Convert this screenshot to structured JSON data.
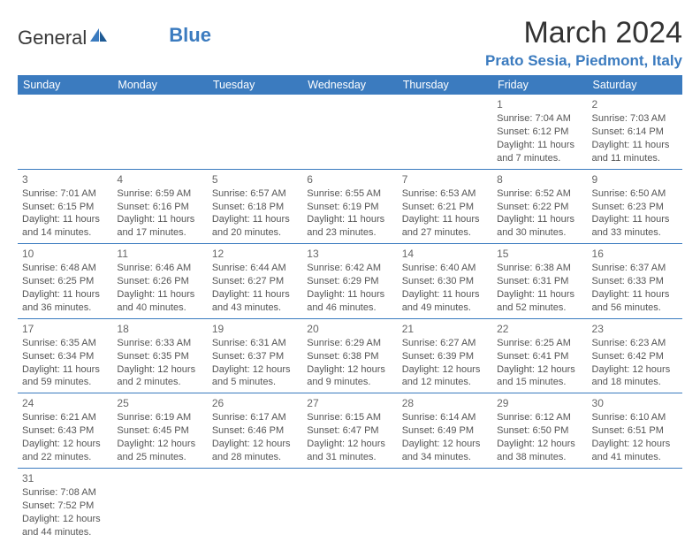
{
  "logo": {
    "general": "General",
    "blue": "Blue"
  },
  "title": "March 2024",
  "location": "Prato Sesia, Piedmont, Italy",
  "colors": {
    "accent": "#3b7bbf",
    "text": "#333333",
    "cell_text": "#555555"
  },
  "dayHeaders": [
    "Sunday",
    "Monday",
    "Tuesday",
    "Wednesday",
    "Thursday",
    "Friday",
    "Saturday"
  ],
  "weeks": [
    [
      null,
      null,
      null,
      null,
      null,
      {
        "n": "1",
        "sr": "Sunrise: 7:04 AM",
        "ss": "Sunset: 6:12 PM",
        "d1": "Daylight: 11 hours",
        "d2": "and 7 minutes."
      },
      {
        "n": "2",
        "sr": "Sunrise: 7:03 AM",
        "ss": "Sunset: 6:14 PM",
        "d1": "Daylight: 11 hours",
        "d2": "and 11 minutes."
      }
    ],
    [
      {
        "n": "3",
        "sr": "Sunrise: 7:01 AM",
        "ss": "Sunset: 6:15 PM",
        "d1": "Daylight: 11 hours",
        "d2": "and 14 minutes."
      },
      {
        "n": "4",
        "sr": "Sunrise: 6:59 AM",
        "ss": "Sunset: 6:16 PM",
        "d1": "Daylight: 11 hours",
        "d2": "and 17 minutes."
      },
      {
        "n": "5",
        "sr": "Sunrise: 6:57 AM",
        "ss": "Sunset: 6:18 PM",
        "d1": "Daylight: 11 hours",
        "d2": "and 20 minutes."
      },
      {
        "n": "6",
        "sr": "Sunrise: 6:55 AM",
        "ss": "Sunset: 6:19 PM",
        "d1": "Daylight: 11 hours",
        "d2": "and 23 minutes."
      },
      {
        "n": "7",
        "sr": "Sunrise: 6:53 AM",
        "ss": "Sunset: 6:21 PM",
        "d1": "Daylight: 11 hours",
        "d2": "and 27 minutes."
      },
      {
        "n": "8",
        "sr": "Sunrise: 6:52 AM",
        "ss": "Sunset: 6:22 PM",
        "d1": "Daylight: 11 hours",
        "d2": "and 30 minutes."
      },
      {
        "n": "9",
        "sr": "Sunrise: 6:50 AM",
        "ss": "Sunset: 6:23 PM",
        "d1": "Daylight: 11 hours",
        "d2": "and 33 minutes."
      }
    ],
    [
      {
        "n": "10",
        "sr": "Sunrise: 6:48 AM",
        "ss": "Sunset: 6:25 PM",
        "d1": "Daylight: 11 hours",
        "d2": "and 36 minutes."
      },
      {
        "n": "11",
        "sr": "Sunrise: 6:46 AM",
        "ss": "Sunset: 6:26 PM",
        "d1": "Daylight: 11 hours",
        "d2": "and 40 minutes."
      },
      {
        "n": "12",
        "sr": "Sunrise: 6:44 AM",
        "ss": "Sunset: 6:27 PM",
        "d1": "Daylight: 11 hours",
        "d2": "and 43 minutes."
      },
      {
        "n": "13",
        "sr": "Sunrise: 6:42 AM",
        "ss": "Sunset: 6:29 PM",
        "d1": "Daylight: 11 hours",
        "d2": "and 46 minutes."
      },
      {
        "n": "14",
        "sr": "Sunrise: 6:40 AM",
        "ss": "Sunset: 6:30 PM",
        "d1": "Daylight: 11 hours",
        "d2": "and 49 minutes."
      },
      {
        "n": "15",
        "sr": "Sunrise: 6:38 AM",
        "ss": "Sunset: 6:31 PM",
        "d1": "Daylight: 11 hours",
        "d2": "and 52 minutes."
      },
      {
        "n": "16",
        "sr": "Sunrise: 6:37 AM",
        "ss": "Sunset: 6:33 PM",
        "d1": "Daylight: 11 hours",
        "d2": "and 56 minutes."
      }
    ],
    [
      {
        "n": "17",
        "sr": "Sunrise: 6:35 AM",
        "ss": "Sunset: 6:34 PM",
        "d1": "Daylight: 11 hours",
        "d2": "and 59 minutes."
      },
      {
        "n": "18",
        "sr": "Sunrise: 6:33 AM",
        "ss": "Sunset: 6:35 PM",
        "d1": "Daylight: 12 hours",
        "d2": "and 2 minutes."
      },
      {
        "n": "19",
        "sr": "Sunrise: 6:31 AM",
        "ss": "Sunset: 6:37 PM",
        "d1": "Daylight: 12 hours",
        "d2": "and 5 minutes."
      },
      {
        "n": "20",
        "sr": "Sunrise: 6:29 AM",
        "ss": "Sunset: 6:38 PM",
        "d1": "Daylight: 12 hours",
        "d2": "and 9 minutes."
      },
      {
        "n": "21",
        "sr": "Sunrise: 6:27 AM",
        "ss": "Sunset: 6:39 PM",
        "d1": "Daylight: 12 hours",
        "d2": "and 12 minutes."
      },
      {
        "n": "22",
        "sr": "Sunrise: 6:25 AM",
        "ss": "Sunset: 6:41 PM",
        "d1": "Daylight: 12 hours",
        "d2": "and 15 minutes."
      },
      {
        "n": "23",
        "sr": "Sunrise: 6:23 AM",
        "ss": "Sunset: 6:42 PM",
        "d1": "Daylight: 12 hours",
        "d2": "and 18 minutes."
      }
    ],
    [
      {
        "n": "24",
        "sr": "Sunrise: 6:21 AM",
        "ss": "Sunset: 6:43 PM",
        "d1": "Daylight: 12 hours",
        "d2": "and 22 minutes."
      },
      {
        "n": "25",
        "sr": "Sunrise: 6:19 AM",
        "ss": "Sunset: 6:45 PM",
        "d1": "Daylight: 12 hours",
        "d2": "and 25 minutes."
      },
      {
        "n": "26",
        "sr": "Sunrise: 6:17 AM",
        "ss": "Sunset: 6:46 PM",
        "d1": "Daylight: 12 hours",
        "d2": "and 28 minutes."
      },
      {
        "n": "27",
        "sr": "Sunrise: 6:15 AM",
        "ss": "Sunset: 6:47 PM",
        "d1": "Daylight: 12 hours",
        "d2": "and 31 minutes."
      },
      {
        "n": "28",
        "sr": "Sunrise: 6:14 AM",
        "ss": "Sunset: 6:49 PM",
        "d1": "Daylight: 12 hours",
        "d2": "and 34 minutes."
      },
      {
        "n": "29",
        "sr": "Sunrise: 6:12 AM",
        "ss": "Sunset: 6:50 PM",
        "d1": "Daylight: 12 hours",
        "d2": "and 38 minutes."
      },
      {
        "n": "30",
        "sr": "Sunrise: 6:10 AM",
        "ss": "Sunset: 6:51 PM",
        "d1": "Daylight: 12 hours",
        "d2": "and 41 minutes."
      }
    ],
    [
      {
        "n": "31",
        "sr": "Sunrise: 7:08 AM",
        "ss": "Sunset: 7:52 PM",
        "d1": "Daylight: 12 hours",
        "d2": "and 44 minutes."
      },
      null,
      null,
      null,
      null,
      null,
      null
    ]
  ]
}
